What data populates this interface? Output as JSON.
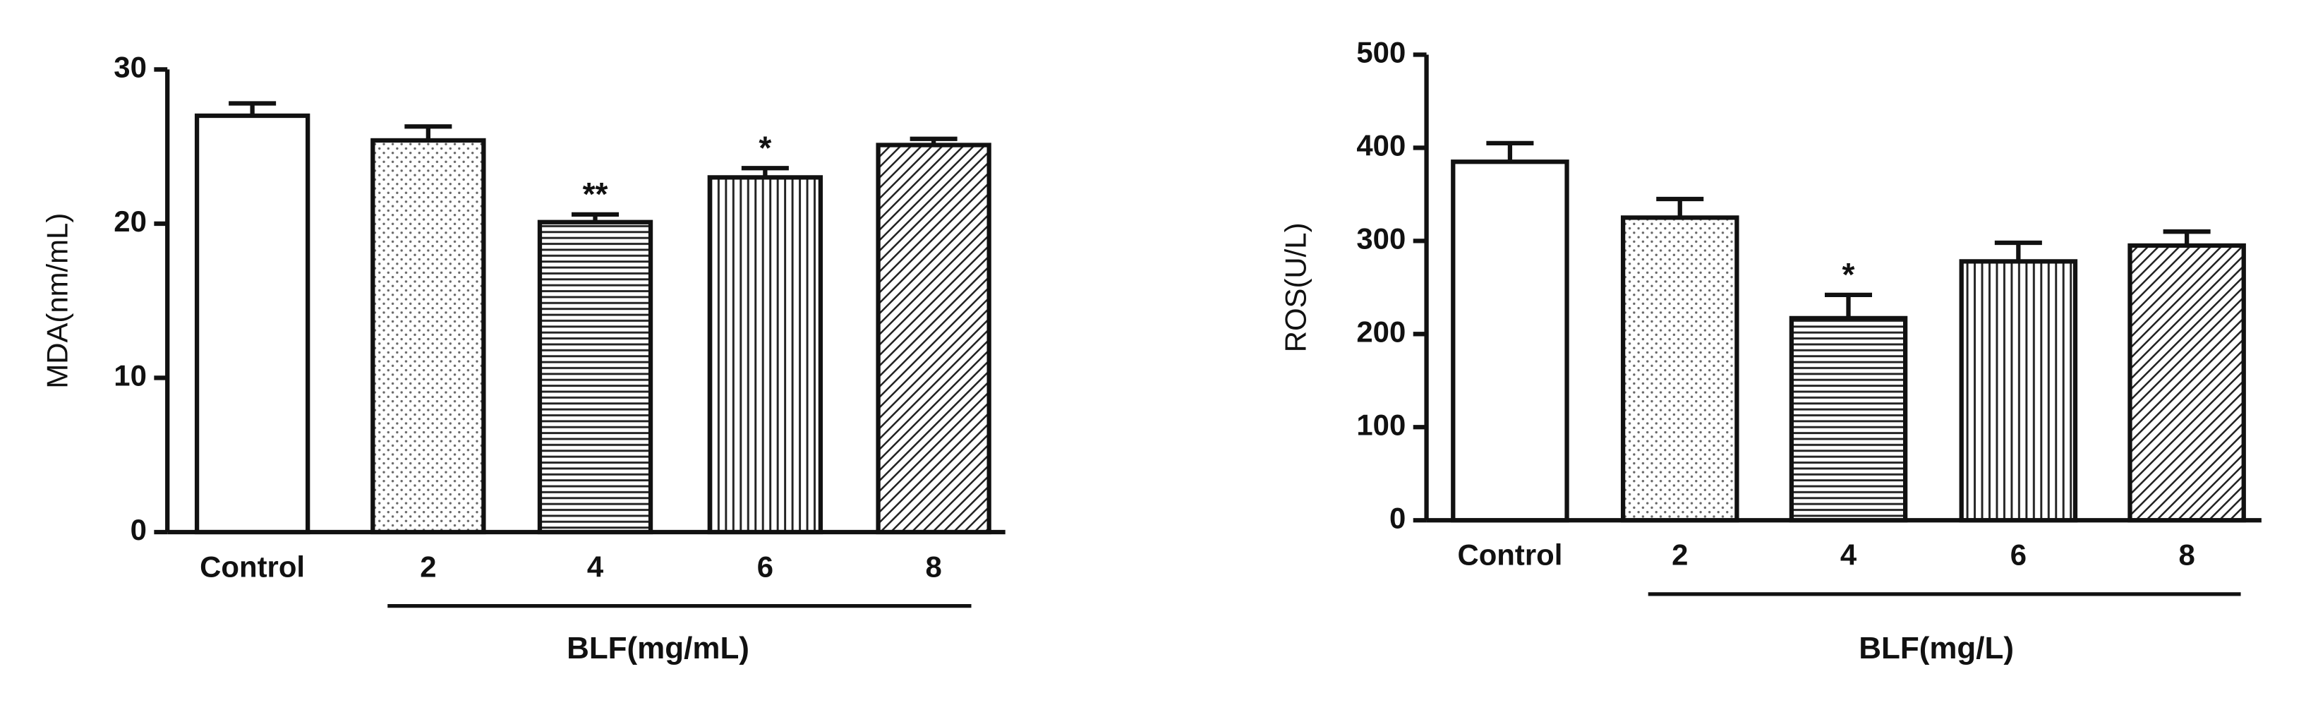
{
  "chart_data": [
    {
      "type": "bar",
      "y_label": "MDA(nm/mL)",
      "x_label": "BLF(mg/mL)",
      "categories": [
        "Control",
        "2",
        "4",
        "6",
        "8"
      ],
      "values": [
        27,
        25.4,
        20.1,
        23,
        25.1
      ],
      "errors": [
        0.8,
        0.9,
        0.5,
        0.6,
        0.4
      ],
      "significance": [
        null,
        null,
        "**",
        "*",
        null
      ],
      "ylim": [
        0,
        30
      ],
      "yticks": [
        0,
        10,
        20,
        30
      ],
      "color": "#111111"
    },
    {
      "type": "bar",
      "y_label": "ROS(U/L)",
      "x_label": "BLF(mg/L)",
      "categories": [
        "Control",
        "2",
        "4",
        "6",
        "8"
      ],
      "values": [
        385,
        325,
        217,
        278,
        295
      ],
      "errors": [
        20,
        20,
        25,
        20,
        15
      ],
      "significance": [
        null,
        null,
        "*",
        null,
        null
      ],
      "ylim": [
        0,
        500
      ],
      "yticks": [
        0,
        100,
        200,
        300,
        400,
        500
      ],
      "color": "#111111"
    }
  ]
}
